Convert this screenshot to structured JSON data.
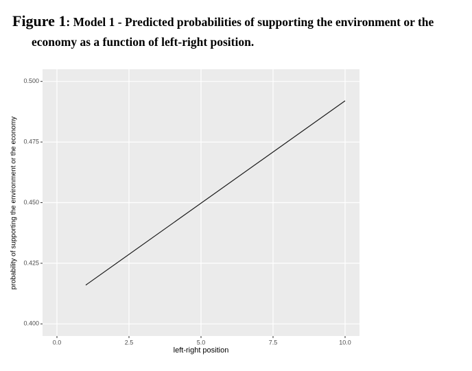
{
  "chart_data": {
    "type": "line",
    "title_label": "Figure 1",
    "title": ": Model 1 - Predicted probabilities of supporting the environment or the economy as a function of left-right position.",
    "x_label": "left-right position",
    "y_label": "probability of supporting the environment or the economy",
    "x": [
      1,
      10
    ],
    "series": [
      {
        "color": "#1a1a1a",
        "values": [
          0.416,
          0.492
        ]
      }
    ],
    "xlim": [
      -0.5,
      10.5
    ],
    "ylim": [
      0.395,
      0.505
    ],
    "xticks": [
      {
        "value": 0,
        "label": "0.0"
      },
      2.5,
      {
        "value": 5,
        "label": "5.0"
      },
      7.5,
      {
        "value": 10,
        "label": "10.0"
      }
    ],
    "yticks": [
      {
        "value": 0.4,
        "label": "0.400"
      },
      {
        "value": 0.425,
        "label": "0.425"
      },
      {
        "value": 0.45,
        "label": "0.450"
      },
      {
        "value": 0.475,
        "label": "0.475"
      },
      {
        "value": 0.5,
        "label": "0.500"
      }
    ],
    "grid": true,
    "panel_color": "#ebebeb"
  }
}
